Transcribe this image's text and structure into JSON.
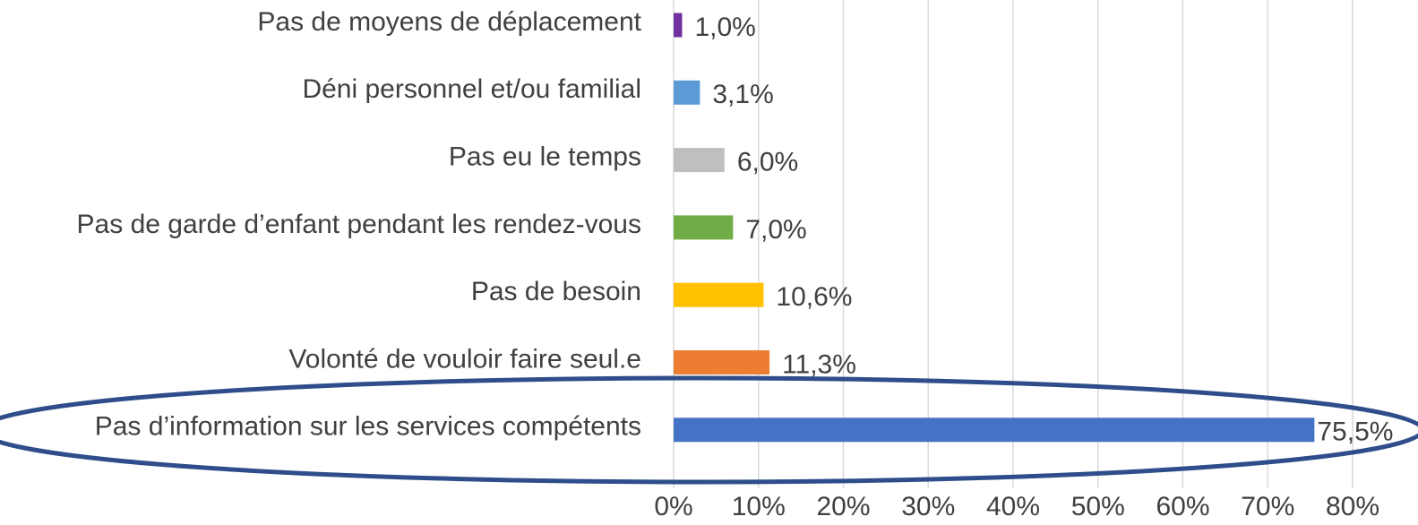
{
  "chart_data": {
    "type": "bar",
    "categories": [
      "Pas de moyens de déplacement",
      "Déni personnel et/ou familial",
      "Pas eu le temps",
      "Pas de garde d’enfant pendant les rendez-vous",
      "Pas de besoin",
      "Volonté de vouloir faire seul.e",
      "Pas d’information sur les services compétents"
    ],
    "values": [
      1.0,
      3.1,
      6.0,
      7.0,
      10.6,
      11.3,
      75.5
    ],
    "value_labels": [
      "1,0%",
      "3,1%",
      "6,0%",
      "7,0%",
      "10,6%",
      "11,3%",
      "75,5%"
    ],
    "colors": [
      "#7030a0",
      "#5b9bd5",
      "#bfbfbf",
      "#70ad47",
      "#ffc000",
      "#ed7d31",
      "#4472c4"
    ],
    "xlim": [
      0,
      80
    ],
    "xticks": [
      {
        "value": 0,
        "label": "0%"
      },
      {
        "value": 10,
        "label": "10%"
      },
      {
        "value": 20,
        "label": "20%"
      },
      {
        "value": 30,
        "label": "30%"
      },
      {
        "value": 40,
        "label": "40%"
      },
      {
        "value": 50,
        "label": "50%"
      },
      {
        "value": 60,
        "label": "60%"
      },
      {
        "value": 70,
        "label": "70%"
      },
      {
        "value": 80,
        "label": "80%"
      }
    ],
    "grid": true
  }
}
